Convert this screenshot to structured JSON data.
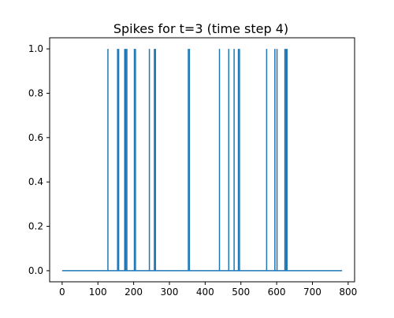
{
  "chart_data": {
    "type": "line",
    "title": "Spikes for t=3 (time step 4)",
    "xlabel": "",
    "ylabel": "",
    "xlim": [
      -35,
      818
    ],
    "ylim": [
      -0.05,
      1.05
    ],
    "x_ticks": [
      0,
      100,
      200,
      300,
      400,
      500,
      600,
      700,
      800
    ],
    "y_ticks": [
      0.0,
      0.2,
      0.4,
      0.6,
      0.8,
      1.0
    ],
    "x_tick_labels": [
      "0",
      "100",
      "200",
      "300",
      "400",
      "500",
      "600",
      "700",
      "800"
    ],
    "y_tick_labels": [
      "0.0",
      "0.2",
      "0.4",
      "0.6",
      "0.8",
      "1.0"
    ],
    "grid": false,
    "legend": "none",
    "x_range": [
      0,
      783
    ],
    "baseline_value": 0,
    "spike_value": 1,
    "spike_indices": [
      128,
      155,
      158,
      175,
      178,
      181,
      202,
      205,
      244,
      258,
      261,
      353,
      356,
      440,
      466,
      481,
      493,
      496,
      572,
      595,
      601,
      623,
      626,
      629
    ],
    "series": [
      {
        "color": "#1f77b4"
      }
    ]
  }
}
